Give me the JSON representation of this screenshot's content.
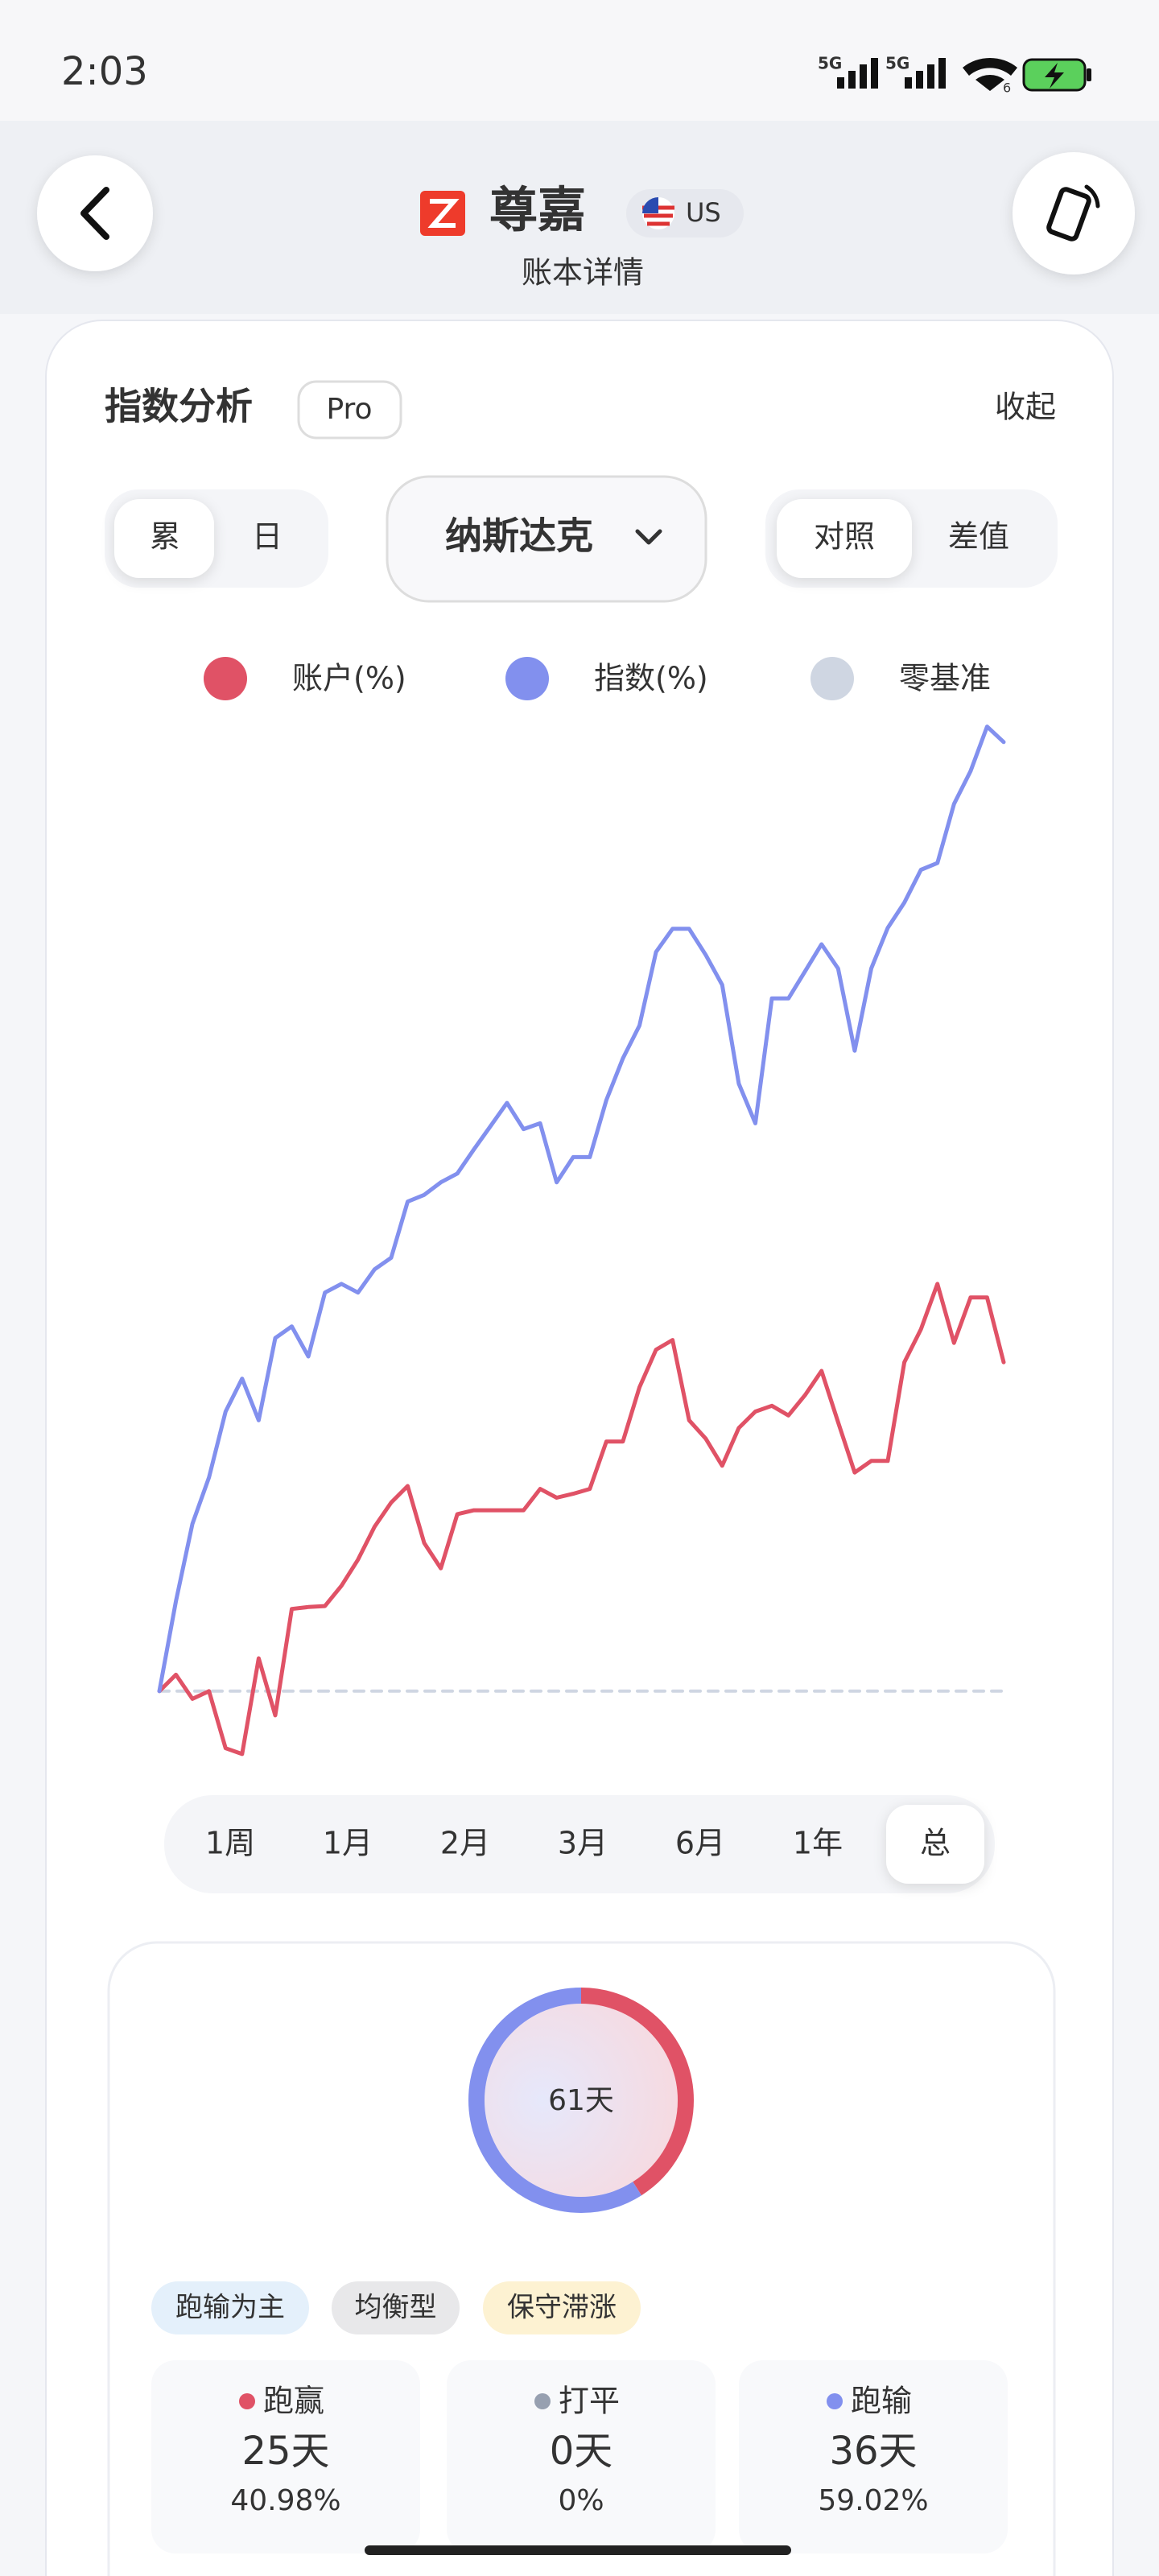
{
  "status_bar": {
    "time": "2:03",
    "network": [
      "5G",
      "5G"
    ],
    "wifi": "6"
  },
  "header": {
    "title": "尊嘉",
    "region": "US",
    "subtitle": "账本详情"
  },
  "panel": {
    "title": "指数分析",
    "badge": "Pro",
    "collapse": "收起",
    "mode_tabs": [
      "累",
      "日"
    ],
    "index_select": "纳斯达克",
    "view_tabs": [
      "对照",
      "差值"
    ],
    "periods": [
      "1周",
      "1月",
      "2月",
      "3月",
      "6月",
      "1年",
      "总"
    ]
  },
  "chart_data": {
    "type": "line",
    "ylim": [
      -10,
      100
    ],
    "series": [
      {
        "name": "账户(%)",
        "color": "#e05266",
        "values": [
          0,
          1.7,
          -0.8,
          0,
          -5.9,
          -6.5,
          3.4,
          -2.5,
          8.5,
          8.7,
          8.8,
          10.9,
          13.6,
          17.0,
          19.5,
          21.2,
          15.3,
          12.7,
          18.3,
          18.7,
          18.7,
          18.7,
          18.7,
          20.9,
          20.0,
          20.4,
          20.9,
          25.8,
          25.8,
          31.4,
          35.3,
          36.3,
          28.0,
          26.1,
          23.3,
          27.2,
          28.9,
          29.5,
          28.5,
          30.6,
          33.1,
          27.8,
          22.6,
          23.8,
          23.8,
          34.0,
          37.4,
          42.1,
          36.0,
          40.7,
          40.7,
          34.0
        ]
      },
      {
        "name": "指数(%)",
        "color": "#8290ee",
        "values": [
          0,
          9.3,
          17.3,
          22.1,
          28.9,
          32.3,
          28.0,
          36.5,
          37.7,
          34.6,
          41.2,
          42.1,
          41.2,
          43.6,
          44.8,
          50.6,
          51.3,
          52.6,
          53.5,
          56.0,
          58.4,
          60.8,
          58.1,
          58.7,
          52.6,
          55.2,
          55.2,
          61.1,
          65.4,
          68.8,
          76.4,
          78.8,
          78.8,
          76.1,
          73.0,
          62.8,
          58.7,
          71.6,
          71.6,
          74.4,
          77.2,
          74.7,
          66.2,
          74.7,
          78.9,
          81.5,
          84.9,
          85.6,
          91.7,
          95.1,
          99.7,
          98.1
        ]
      },
      {
        "name": "零基准",
        "color": "#cfd6e2",
        "style": "dashed",
        "values": [
          0,
          0,
          0,
          0,
          0,
          0,
          0,
          0,
          0,
          0,
          0,
          0,
          0,
          0,
          0,
          0,
          0,
          0,
          0,
          0,
          0,
          0,
          0,
          0,
          0,
          0,
          0,
          0,
          0,
          0,
          0,
          0,
          0,
          0,
          0,
          0,
          0,
          0,
          0,
          0,
          0,
          0,
          0,
          0,
          0,
          0,
          0,
          0,
          0,
          0,
          0,
          0
        ]
      }
    ]
  },
  "summary": {
    "total": "61天",
    "tags": [
      "跑输为主",
      "均衡型",
      "保守滞涨"
    ],
    "items": [
      {
        "name": "跑赢",
        "days": "25天",
        "percent": 40.98,
        "percent_label": "40.98%",
        "color": "#e05266"
      },
      {
        "name": "打平",
        "days": "0天",
        "percent": 0,
        "percent_label": "0%",
        "color": "#97a0b0"
      },
      {
        "name": "跑输",
        "days": "36天",
        "percent": 59.02,
        "percent_label": "59.02%",
        "color": "#8290ee"
      }
    ]
  }
}
